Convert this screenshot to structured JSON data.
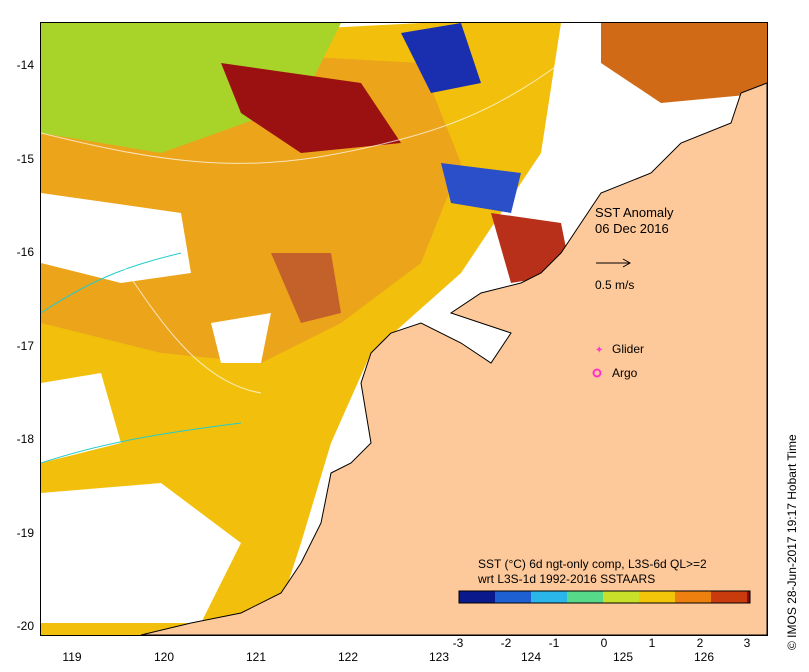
{
  "map": {
    "title_line1": "SST Anomaly",
    "title_line2": "06 Dec 2016",
    "arrow_scale_label": "0.5 m/s",
    "legend": [
      {
        "label": "Glider",
        "color": "#ff33cc"
      },
      {
        "label": "Argo",
        "color": "#ff33cc"
      }
    ],
    "caption_line1": "SST (°C) 6d ngt-only comp, L3S-6d QL>=2",
    "caption_line2": "wrt L3S-1d 1992-2016 SSTAARS",
    "credit": "© IMOS 28-Jun-2017 19:17 Hobart Time",
    "y_ticks": [
      "-14",
      "-15",
      "-16",
      "-17",
      "-18",
      "-19",
      "-20"
    ],
    "x_ticks": [
      "119",
      "120",
      "121",
      "122",
      "123",
      "124",
      "125",
      "126"
    ],
    "colorbar": {
      "labels": [
        "-3",
        "-2",
        "-1",
        "0",
        "1",
        "2",
        "3"
      ],
      "colors": [
        "#0a1a8c",
        "#1e5fd1",
        "#2ab6e8",
        "#57d98a",
        "#c8e02a",
        "#f2c40a",
        "#ee8010",
        "#c93a0c",
        "#8b0d0d"
      ]
    },
    "land_color": "#fdc89a"
  }
}
